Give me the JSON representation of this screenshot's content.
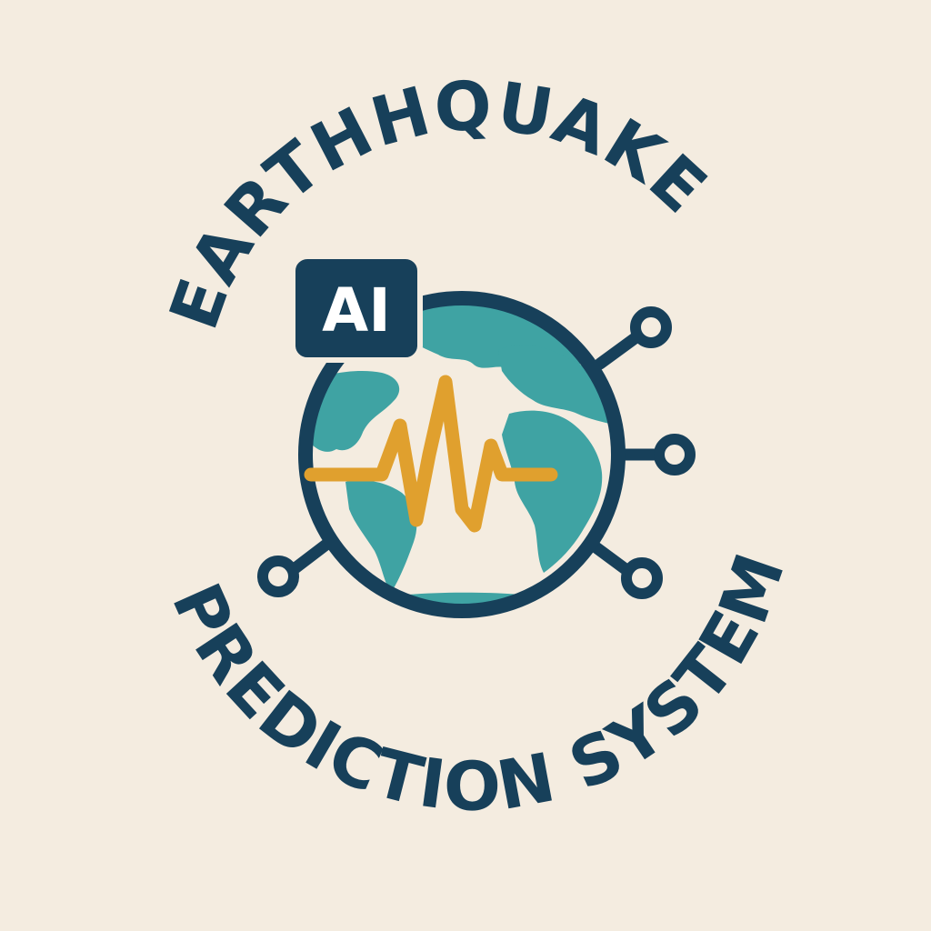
{
  "logo": {
    "top_text": "EARTHHQUAKE",
    "bottom_text": "PREDICTION SYSTEM",
    "badge_text": "AI"
  },
  "colors": {
    "background": "#f4ece0",
    "navy": "#17405a",
    "teal": "#3fa3a3",
    "ocean": "#f4ece0",
    "wave": "#e0a02e",
    "badge_text": "#ffffff"
  },
  "icons": {
    "globe": "globe-icon",
    "seismograph": "seismic-wave-icon",
    "network_nodes": "network-node-icon"
  }
}
